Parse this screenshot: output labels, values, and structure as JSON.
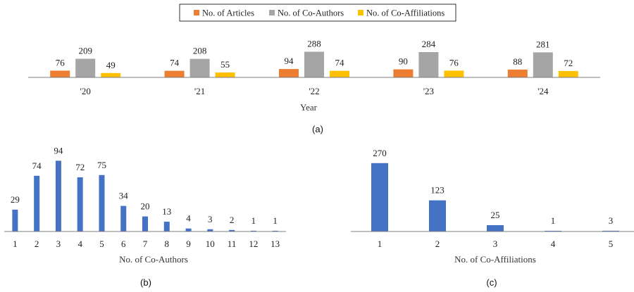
{
  "chart_data": [
    {
      "type": "bar",
      "categories": [
        "'20",
        "'21",
        "'22",
        "'23",
        "'24"
      ],
      "series": [
        {
          "name": "No. of Articles",
          "color": "#ED7D31",
          "values": [
            76,
            74,
            94,
            90,
            88
          ]
        },
        {
          "name": "No. of Co-Authors",
          "color": "#A5A5A5",
          "values": [
            209,
            208,
            288,
            284,
            281
          ]
        },
        {
          "name": "No. of Co-Affiliations",
          "color": "#FFC000",
          "values": [
            49,
            55,
            74,
            76,
            72
          ]
        }
      ],
      "xlabel": "Year",
      "ylabel": "",
      "ylim": [
        0,
        300
      ],
      "legend_position": "top",
      "caption": "(a)"
    },
    {
      "type": "bar",
      "categories": [
        "1",
        "2",
        "3",
        "4",
        "5",
        "6",
        "7",
        "8",
        "9",
        "10",
        "11",
        "12",
        "13"
      ],
      "values": [
        29,
        74,
        94,
        72,
        75,
        34,
        20,
        13,
        4,
        3,
        2,
        1,
        1
      ],
      "color": "#4472C4",
      "xlabel": "No. of Co-Authors",
      "ylabel": "",
      "ylim": [
        0,
        100
      ],
      "caption": "(b)"
    },
    {
      "type": "bar",
      "categories": [
        "1",
        "2",
        "3",
        "4",
        "5"
      ],
      "values": [
        270,
        123,
        25,
        1,
        3
      ],
      "color": "#4472C4",
      "xlabel": "No. of Co-Affiliations",
      "ylabel": "",
      "ylim": [
        0,
        300
      ],
      "caption": "(c)"
    }
  ]
}
